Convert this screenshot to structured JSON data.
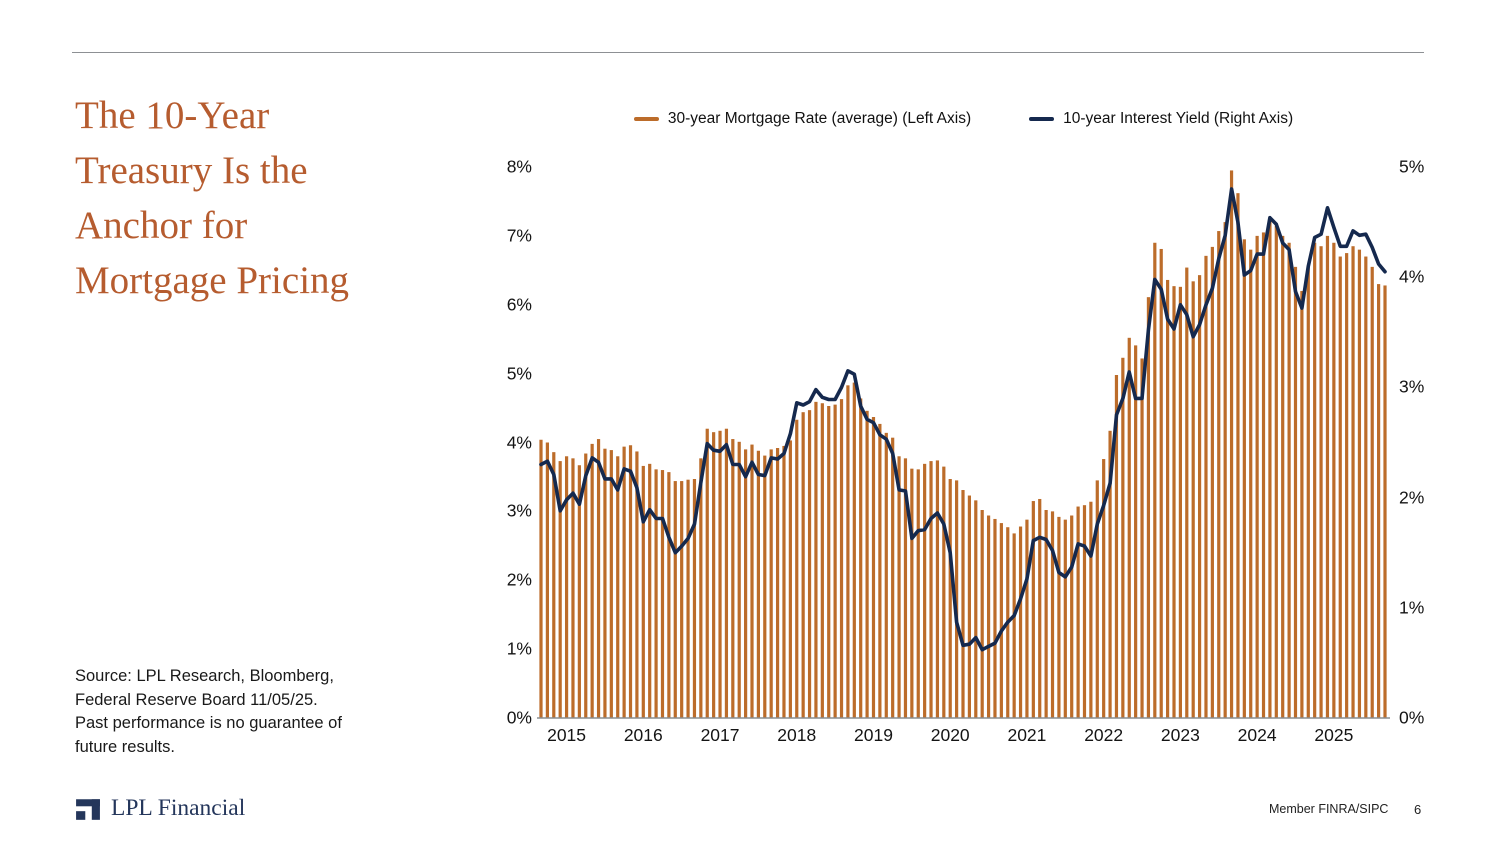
{
  "title": {
    "lines": [
      "The 10-Year",
      "Treasury Is the",
      "Anchor for",
      "Mortgage Pricing"
    ],
    "color": "#b65c2f"
  },
  "source_note": {
    "lines": [
      "Source: LPL Research, Bloomberg,",
      "Federal Reserve Board 11/05/25.",
      "Past performance is no guarantee of",
      "future results."
    ]
  },
  "footer": {
    "brand": "LPL Financial",
    "member": "Member FINRA/SIPC",
    "page_number": "6",
    "brand_color": "#24365b"
  },
  "chart_data": {
    "type": "bar+line",
    "x_unit": "month",
    "start_month": "2014-10",
    "end_month": "2025-10",
    "grid": false,
    "legend_position": "top",
    "x_tick_labels": [
      "2015",
      "2016",
      "2017",
      "2018",
      "2019",
      "2020",
      "2021",
      "2022",
      "2023",
      "2024",
      "2025"
    ],
    "left_axis": {
      "min": 0,
      "max": 8,
      "ticks": [
        "0%",
        "1%",
        "2%",
        "3%",
        "4%",
        "5%",
        "6%",
        "7%",
        "8%"
      ]
    },
    "right_axis": {
      "min": 0,
      "max": 5,
      "ticks": [
        "0%",
        "1%",
        "2%",
        "3%",
        "4%",
        "5%"
      ]
    },
    "series": [
      {
        "name": "30-year Mortgage Rate (average) (Left Axis)",
        "type": "bar",
        "axis": "left",
        "color": "#bc6c2a",
        "values_by_year": {
          "2014": [
            4.04,
            4.0,
            3.86
          ],
          "2015": [
            3.73,
            3.8,
            3.77,
            3.67,
            3.84,
            3.98,
            4.05,
            3.91,
            3.89,
            3.8,
            3.94,
            3.96
          ],
          "2016": [
            3.87,
            3.66,
            3.69,
            3.61,
            3.6,
            3.57,
            3.44,
            3.44,
            3.46,
            3.47,
            3.77,
            4.2
          ],
          "2017": [
            4.15,
            4.17,
            4.2,
            4.05,
            4.01,
            3.9,
            3.97,
            3.88,
            3.81,
            3.9,
            3.92,
            3.95
          ],
          "2018": [
            4.03,
            4.33,
            4.44,
            4.47,
            4.59,
            4.57,
            4.53,
            4.55,
            4.63,
            4.83,
            4.87,
            4.64
          ],
          "2019": [
            4.46,
            4.37,
            4.27,
            4.14,
            4.07,
            3.8,
            3.77,
            3.62,
            3.61,
            3.69,
            3.73,
            3.74
          ],
          "2020": [
            3.65,
            3.47,
            3.45,
            3.31,
            3.23,
            3.16,
            3.02,
            2.94,
            2.89,
            2.83,
            2.77,
            2.68
          ],
          "2021": [
            2.78,
            2.88,
            3.15,
            3.18,
            3.02,
            3.0,
            2.92,
            2.88,
            2.94,
            3.07,
            3.09,
            3.14
          ],
          "2022": [
            3.45,
            3.76,
            4.17,
            4.98,
            5.23,
            5.52,
            5.41,
            5.22,
            6.11,
            6.9,
            6.81,
            6.36
          ],
          "2023": [
            6.27,
            6.26,
            6.54,
            6.34,
            6.43,
            6.71,
            6.84,
            7.07,
            7.2,
            7.95,
            7.62,
            6.95
          ],
          "2024": [
            6.8,
            7.0,
            7.05,
            7.25,
            7.15,
            7.0,
            6.9,
            6.55,
            6.2,
            6.55,
            6.9,
            6.85
          ],
          "2025": [
            7.0,
            6.9,
            6.7,
            6.75,
            6.85,
            6.8,
            6.7,
            6.55,
            6.3,
            6.28
          ]
        }
      },
      {
        "name": "10-year Interest Yield (Right Axis)",
        "type": "line",
        "axis": "right",
        "color": "#15294e",
        "values_by_year": {
          "2014": [
            2.3,
            2.33,
            2.21
          ],
          "2015": [
            1.88,
            1.98,
            2.04,
            1.94,
            2.2,
            2.36,
            2.32,
            2.17,
            2.17,
            2.07,
            2.26,
            2.24
          ],
          "2016": [
            2.09,
            1.78,
            1.89,
            1.81,
            1.81,
            1.64,
            1.5,
            1.56,
            1.63,
            1.76,
            2.14,
            2.49
          ],
          "2017": [
            2.43,
            2.42,
            2.48,
            2.3,
            2.3,
            2.19,
            2.32,
            2.21,
            2.2,
            2.36,
            2.35,
            2.4
          ],
          "2018": [
            2.58,
            2.86,
            2.84,
            2.87,
            2.98,
            2.91,
            2.89,
            2.89,
            3.0,
            3.15,
            3.12,
            2.83
          ],
          "2019": [
            2.71,
            2.68,
            2.57,
            2.53,
            2.4,
            2.07,
            2.06,
            1.63,
            1.7,
            1.71,
            1.81,
            1.86
          ],
          "2020": [
            1.76,
            1.5,
            0.87,
            0.66,
            0.67,
            0.73,
            0.62,
            0.65,
            0.68,
            0.79,
            0.87,
            0.93
          ],
          "2021": [
            1.08,
            1.26,
            1.61,
            1.64,
            1.62,
            1.52,
            1.32,
            1.28,
            1.37,
            1.58,
            1.56,
            1.47
          ],
          "2022": [
            1.76,
            1.93,
            2.13,
            2.75,
            2.9,
            3.14,
            2.9,
            2.9,
            3.52,
            3.98,
            3.89,
            3.62
          ],
          "2023": [
            3.53,
            3.75,
            3.66,
            3.46,
            3.57,
            3.75,
            3.9,
            4.17,
            4.38,
            4.8,
            4.5,
            4.02
          ],
          "2024": [
            4.06,
            4.21,
            4.21,
            4.54,
            4.48,
            4.31,
            4.25,
            3.87,
            3.72,
            4.1,
            4.36,
            4.39
          ],
          "2025": [
            4.63,
            4.45,
            4.28,
            4.28,
            4.42,
            4.38,
            4.39,
            4.27,
            4.12,
            4.05
          ]
        }
      }
    ]
  }
}
